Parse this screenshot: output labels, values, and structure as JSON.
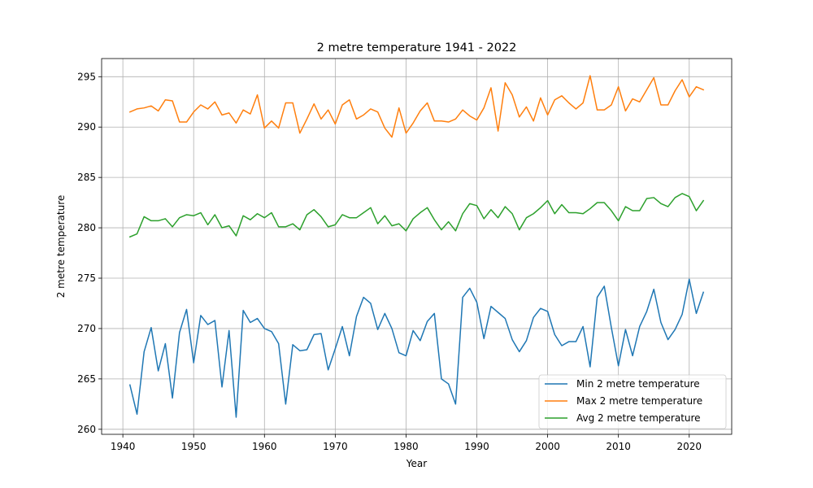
{
  "chart_data": {
    "type": "line",
    "title": "2 metre temperature 1941 - 2022",
    "xlabel": "Year",
    "ylabel": "2 metre temperature",
    "xlim": [
      1937,
      2026
    ],
    "ylim": [
      259.5,
      296.8
    ],
    "xticks": [
      1940,
      1950,
      1960,
      1970,
      1980,
      1990,
      2000,
      2010,
      2020
    ],
    "yticks": [
      260,
      265,
      270,
      275,
      280,
      285,
      290,
      295
    ],
    "grid": true,
    "legend_position": "lower-right",
    "x": [
      1941,
      1942,
      1943,
      1944,
      1945,
      1946,
      1947,
      1948,
      1949,
      1950,
      1951,
      1952,
      1953,
      1954,
      1955,
      1956,
      1957,
      1958,
      1959,
      1960,
      1961,
      1962,
      1963,
      1964,
      1965,
      1966,
      1967,
      1968,
      1969,
      1970,
      1971,
      1972,
      1973,
      1974,
      1975,
      1976,
      1977,
      1978,
      1979,
      1980,
      1981,
      1982,
      1983,
      1984,
      1985,
      1986,
      1987,
      1988,
      1989,
      1990,
      1991,
      1992,
      1993,
      1994,
      1995,
      1996,
      1997,
      1998,
      1999,
      2000,
      2001,
      2002,
      2003,
      2004,
      2005,
      2006,
      2007,
      2008,
      2009,
      2010,
      2011,
      2012,
      2013,
      2014,
      2015,
      2016,
      2017,
      2018,
      2019,
      2020,
      2021,
      2022
    ],
    "series": [
      {
        "name": "Min 2 metre temperature",
        "color": "#1f77b4",
        "values": [
          264.4,
          261.5,
          267.7,
          270.1,
          265.8,
          268.5,
          263.1,
          269.6,
          271.9,
          266.6,
          271.3,
          270.4,
          270.8,
          264.2,
          269.8,
          261.2,
          271.8,
          270.6,
          271.0,
          270.0,
          269.7,
          268.5,
          262.5,
          268.4,
          267.8,
          267.9,
          269.4,
          269.5,
          265.9,
          268.0,
          270.2,
          267.3,
          271.2,
          273.1,
          272.5,
          269.9,
          271.5,
          270.0,
          267.6,
          267.3,
          269.8,
          268.8,
          270.7,
          271.5,
          265.0,
          264.5,
          262.5,
          273.1,
          274.0,
          272.6,
          269.0,
          272.2,
          271.6,
          271.0,
          268.9,
          267.7,
          268.8,
          271.1,
          272.0,
          271.7,
          269.4,
          268.3,
          268.7,
          268.7,
          270.2,
          266.2,
          273.1,
          274.2,
          270.1,
          266.3,
          269.9,
          267.3,
          270.2,
          271.7,
          273.9,
          270.6,
          268.9,
          269.9,
          271.4,
          274.9,
          271.5,
          273.6
        ]
      },
      {
        "name": "Max 2 metre temperature",
        "color": "#ff7f0e",
        "values": [
          291.5,
          291.8,
          291.9,
          292.1,
          291.6,
          292.7,
          292.6,
          290.5,
          290.5,
          291.5,
          292.2,
          291.8,
          292.5,
          291.2,
          291.4,
          290.4,
          291.7,
          291.3,
          293.2,
          289.9,
          290.6,
          289.9,
          292.4,
          292.4,
          289.4,
          290.8,
          292.3,
          290.8,
          291.7,
          290.3,
          292.2,
          292.7,
          290.8,
          291.2,
          291.8,
          291.5,
          289.9,
          289.0,
          291.9,
          289.4,
          290.4,
          291.6,
          292.4,
          290.6,
          290.6,
          290.5,
          290.8,
          291.7,
          291.1,
          290.7,
          291.9,
          293.9,
          289.6,
          294.4,
          293.2,
          291.0,
          292.0,
          290.6,
          292.9,
          291.2,
          292.7,
          293.1,
          292.4,
          291.8,
          292.4,
          295.1,
          291.7,
          291.7,
          292.2,
          294.0,
          291.6,
          292.8,
          292.5,
          293.7,
          294.9,
          292.2,
          292.2,
          293.6,
          294.7,
          293.0,
          294.0,
          293.7
        ]
      },
      {
        "name": "Avg 2 metre temperature",
        "color": "#2ca02c",
        "values": [
          279.1,
          279.4,
          281.1,
          280.7,
          280.7,
          280.9,
          280.1,
          281.0,
          281.3,
          281.2,
          281.5,
          280.3,
          281.3,
          280.0,
          280.2,
          279.2,
          281.2,
          280.8,
          281.4,
          281.0,
          281.5,
          280.1,
          280.1,
          280.4,
          279.8,
          281.3,
          281.8,
          281.1,
          280.1,
          280.3,
          281.3,
          281.0,
          281.0,
          281.5,
          282.0,
          280.4,
          281.2,
          280.2,
          280.4,
          279.7,
          280.9,
          281.5,
          282.0,
          280.8,
          279.8,
          280.6,
          279.7,
          281.4,
          282.4,
          282.2,
          280.9,
          281.8,
          281.0,
          282.1,
          281.4,
          279.8,
          281.0,
          281.4,
          282.0,
          282.7,
          281.4,
          282.3,
          281.5,
          281.5,
          281.4,
          281.9,
          282.5,
          282.5,
          281.7,
          280.7,
          282.1,
          281.7,
          281.7,
          282.9,
          283.0,
          282.4,
          282.1,
          283.0,
          283.4,
          283.1,
          281.7,
          282.7
        ]
      }
    ]
  }
}
